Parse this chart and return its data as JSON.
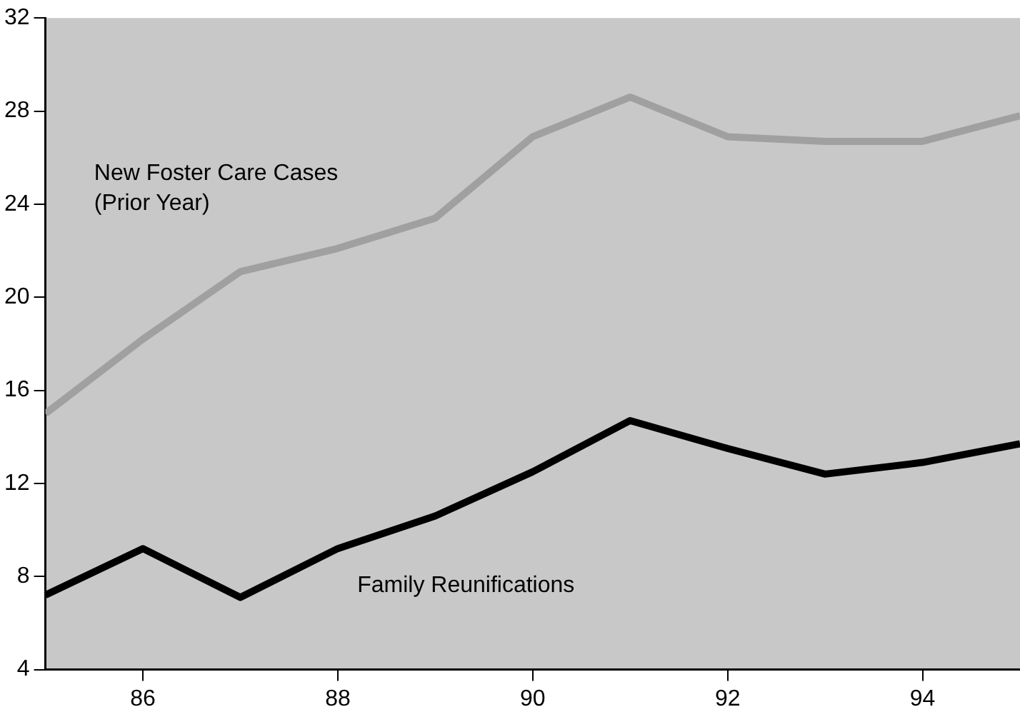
{
  "chart_data": {
    "type": "line",
    "x": [
      85,
      86,
      87,
      88,
      89,
      90,
      91,
      92,
      93,
      94,
      95
    ],
    "series": [
      {
        "name": "New Foster Care Cases\n(Prior Year)",
        "color": "#a0a0a0",
        "values": [
          15.0,
          18.2,
          21.1,
          22.1,
          23.4,
          26.9,
          28.6,
          26.9,
          26.7,
          26.7,
          27.8
        ]
      },
      {
        "name": "Family Reunifications",
        "color": "#000000",
        "values": [
          7.2,
          9.2,
          7.1,
          9.2,
          10.6,
          12.5,
          14.7,
          13.5,
          12.4,
          12.9,
          13.7
        ]
      }
    ],
    "xlim": [
      85,
      95
    ],
    "xticks": [
      86,
      88,
      90,
      92,
      94
    ],
    "ylim": [
      4,
      32
    ],
    "yticks": [
      4,
      8,
      12,
      16,
      20,
      24,
      28,
      32
    ],
    "grid": false,
    "legend": false,
    "marker": "none",
    "line_style": "solid"
  }
}
